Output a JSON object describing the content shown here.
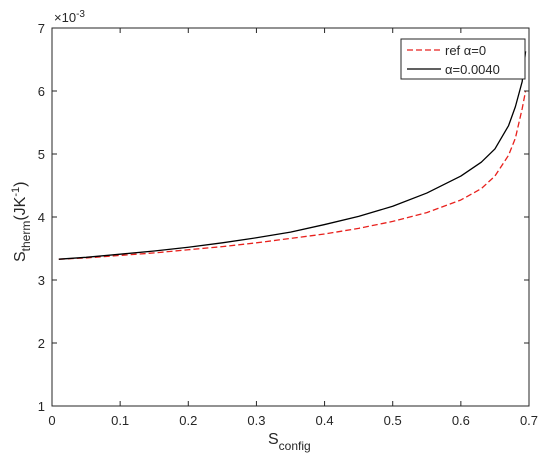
{
  "chart_data": {
    "type": "line",
    "xlabel_main": "S",
    "xlabel_sub": "config",
    "ylabel_main": "S",
    "ylabel_sub": "therm",
    "ylabel_unit_open": "(JK",
    "ylabel_unit_sup": "-1",
    "ylabel_unit_close": ")",
    "y_exponent_base": "×10",
    "y_exponent_power": "-3",
    "xlim": [
      0,
      0.7
    ],
    "ylim": [
      1,
      7
    ],
    "xticks": [
      0,
      0.1,
      0.2,
      0.3,
      0.4,
      0.5,
      0.6,
      0.7
    ],
    "xtick_labels": [
      "0",
      "0.1",
      "0.2",
      "0.3",
      "0.4",
      "0.5",
      "0.6",
      "0.7"
    ],
    "yticks": [
      1,
      2,
      3,
      4,
      5,
      6,
      7
    ],
    "ytick_labels": [
      "1",
      "2",
      "3",
      "4",
      "5",
      "6",
      "7"
    ],
    "grid": false,
    "legend_position": "top-right",
    "series": [
      {
        "name": "ref α=0",
        "color": "#e8211d",
        "dash": "dashed",
        "points": [
          [
            0.01,
            3.33
          ],
          [
            0.05,
            3.35
          ],
          [
            0.1,
            3.39
          ],
          [
            0.15,
            3.43
          ],
          [
            0.2,
            3.48
          ],
          [
            0.25,
            3.53
          ],
          [
            0.3,
            3.59
          ],
          [
            0.35,
            3.66
          ],
          [
            0.4,
            3.73
          ],
          [
            0.45,
            3.82
          ],
          [
            0.5,
            3.93
          ],
          [
            0.55,
            4.07
          ],
          [
            0.6,
            4.27
          ],
          [
            0.63,
            4.45
          ],
          [
            0.65,
            4.65
          ],
          [
            0.67,
            4.98
          ],
          [
            0.68,
            5.25
          ],
          [
            0.69,
            5.72
          ],
          [
            0.695,
            6.0
          ]
        ]
      },
      {
        "name": "α=0.0040",
        "color": "#000000",
        "dash": "solid",
        "points": [
          [
            0.01,
            3.33
          ],
          [
            0.05,
            3.36
          ],
          [
            0.1,
            3.41
          ],
          [
            0.15,
            3.46
          ],
          [
            0.2,
            3.52
          ],
          [
            0.25,
            3.59
          ],
          [
            0.3,
            3.67
          ],
          [
            0.35,
            3.76
          ],
          [
            0.4,
            3.88
          ],
          [
            0.45,
            4.01
          ],
          [
            0.5,
            4.17
          ],
          [
            0.55,
            4.38
          ],
          [
            0.6,
            4.65
          ],
          [
            0.63,
            4.87
          ],
          [
            0.65,
            5.08
          ],
          [
            0.67,
            5.45
          ],
          [
            0.68,
            5.75
          ],
          [
            0.69,
            6.15
          ],
          [
            0.695,
            6.63
          ]
        ]
      }
    ]
  }
}
